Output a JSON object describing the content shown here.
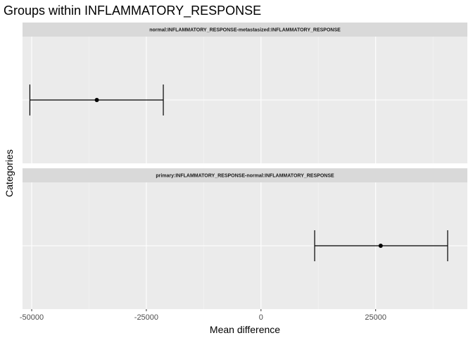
{
  "chart_data": {
    "type": "errorbar",
    "title": "Groups within INFLAMMATORY_RESPONSE",
    "xlabel": "Mean difference",
    "ylabel": "Categories",
    "xlim": [
      -52000,
      45000
    ],
    "x_ticks": [
      -50000,
      -25000,
      0,
      25000
    ],
    "x_tick_labels": [
      "-50000",
      "-25000",
      "0",
      "25000"
    ],
    "grid": true,
    "facets": [
      {
        "label": "normal:INFLAMMATORY_RESPONSE-metastasized:INFLAMMATORY_RESPONSE",
        "estimate": -35800,
        "lower": -50400,
        "upper": -21300
      },
      {
        "label": "primary:INFLAMMATORY_RESPONSE-normal:INFLAMMATORY_RESPONSE",
        "estimate": 26100,
        "lower": 11700,
        "upper": 40700
      }
    ],
    "colors": {
      "panel_background": "#ebebeb",
      "strip_background": "#d9d9d9",
      "grid_major": "#ffffff",
      "grid_minor": "#f5f5f5",
      "marks": "#000000"
    }
  }
}
